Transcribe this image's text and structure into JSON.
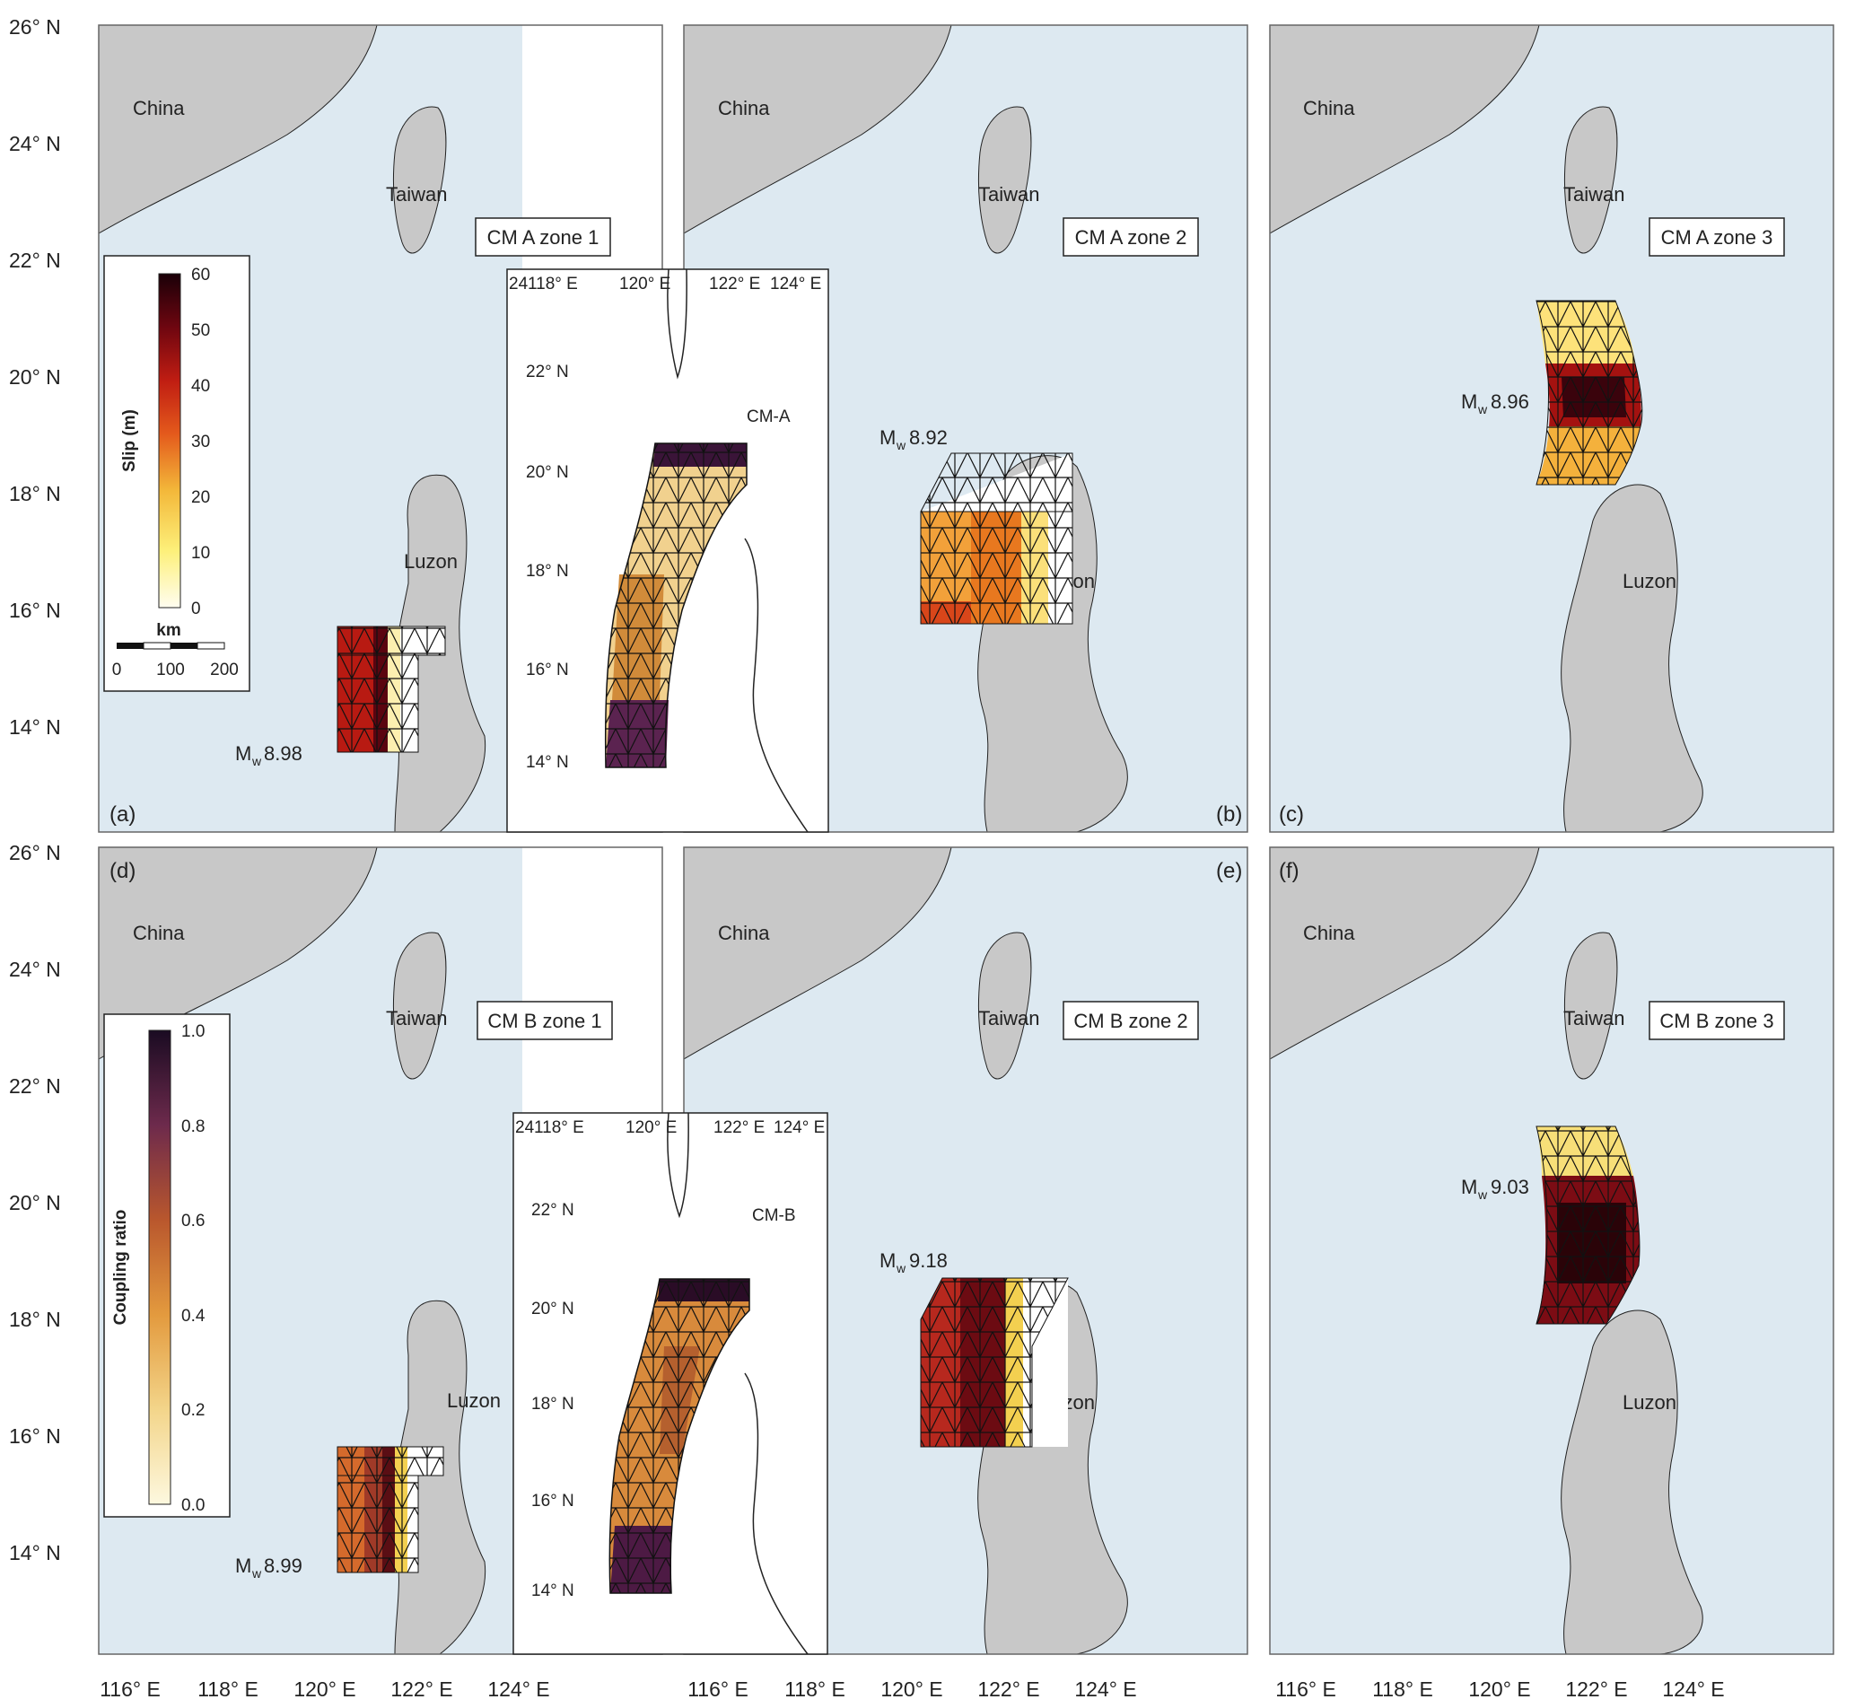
{
  "axes": {
    "lat_labels": [
      "26° N",
      "24° N",
      "22° N",
      "20° N",
      "18° N",
      "16° N",
      "14° N"
    ],
    "lon_labels": [
      "116° E",
      "118° E",
      "120° E",
      "122° E",
      "124° E"
    ],
    "lon_labels_bottom_row": [
      "116° E",
      "118° E",
      "120° E",
      "122° E",
      "124° E",
      "116° E",
      "118° E",
      "120° E",
      "122° E",
      "124° E",
      "116° E",
      "118° E",
      "120° E",
      "122° E",
      "124° E"
    ]
  },
  "places": {
    "china": "China",
    "taiwan": "Taiwan",
    "luzon": "Luzon"
  },
  "panels": [
    {
      "letter": "(a)",
      "model": "CM A zone 1",
      "mw_prefix": "M",
      "mw_sub": "w",
      "mw_value": "8.98"
    },
    {
      "letter": "(b)",
      "model": "CM A zone 2",
      "mw_prefix": "M",
      "mw_sub": "w",
      "mw_value": "8.92"
    },
    {
      "letter": "(c)",
      "model": "CM A zone 3",
      "mw_prefix": "M",
      "mw_sub": "w",
      "mw_value": "8.96"
    },
    {
      "letter": "(d)",
      "model": "CM B zone 1",
      "mw_prefix": "M",
      "mw_sub": "w",
      "mw_value": "8.99"
    },
    {
      "letter": "(e)",
      "model": "CM B zone 2",
      "mw_prefix": "M",
      "mw_sub": "w",
      "mw_value": "9.18"
    },
    {
      "letter": "(f)",
      "model": "CM B zone 3",
      "mw_prefix": "M",
      "mw_sub": "w",
      "mw_value": "9.03"
    }
  ],
  "slip_colorbar": {
    "title": "Slip (m)",
    "ticks": [
      "0",
      "10",
      "20",
      "30",
      "40",
      "50",
      "60"
    ],
    "range": [
      0,
      60
    ],
    "scale_title": "km",
    "scale_ticks": [
      "0",
      "100",
      "200"
    ]
  },
  "coupling_colorbar": {
    "title": "Coupling ratio",
    "ticks": [
      "0.0",
      "0.2",
      "0.4",
      "0.6",
      "0.8",
      "1.0"
    ],
    "range": [
      0,
      1
    ]
  },
  "insets": [
    {
      "name": "CM-A",
      "lon_labels": [
        "118° E",
        "120° E",
        "122° E",
        "124° E"
      ],
      "lat_labels": [
        "22° N",
        "20° N",
        "18° N",
        "16° N",
        "14° N"
      ],
      "corner_label": "24"
    },
    {
      "name": "CM-B",
      "lon_labels": [
        "118° E",
        "120° E",
        "122° E",
        "124° E"
      ],
      "lat_labels": [
        "22° N",
        "20° N",
        "18° N",
        "16° N",
        "14° N"
      ],
      "corner_label": "24"
    }
  ],
  "colors": {
    "ocean": "#dbe9f2",
    "land": "#c4c4c4",
    "slip_low": "#fffdf0",
    "slip_high": "#1a0008",
    "coupling_low": "#fdf8df",
    "coupling_high": "#1a0b22"
  }
}
